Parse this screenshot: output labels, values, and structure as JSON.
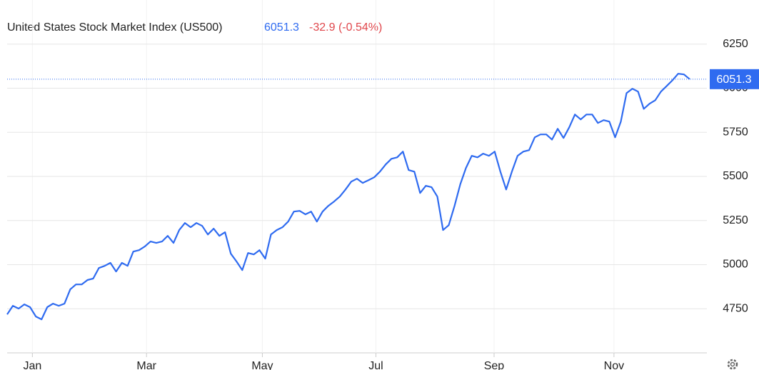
{
  "chart_data": {
    "type": "line",
    "title": "United States Stock Market Index (US500)",
    "last": 6051.3,
    "change": "-32.9 (-0.54%)",
    "color": "#2f6bf0",
    "values": [
      4718,
      4767,
      4751,
      4775,
      4759,
      4706,
      4690,
      4759,
      4779,
      4767,
      4779,
      4860,
      4888,
      4888,
      4913,
      4921,
      4981,
      4993,
      5010,
      4961,
      5010,
      4993,
      5074,
      5082,
      5103,
      5131,
      5123,
      5131,
      5163,
      5123,
      5196,
      5236,
      5212,
      5236,
      5220,
      5171,
      5204,
      5163,
      5184,
      5062,
      5018,
      4969,
      5066,
      5058,
      5082,
      5034,
      5171,
      5196,
      5212,
      5244,
      5301,
      5305,
      5285,
      5301,
      5244,
      5301,
      5333,
      5358,
      5386,
      5426,
      5471,
      5487,
      5463,
      5479,
      5495,
      5527,
      5568,
      5600,
      5608,
      5641,
      5536,
      5527,
      5406,
      5447,
      5439,
      5386,
      5196,
      5224,
      5333,
      5455,
      5548,
      5617,
      5608,
      5629,
      5617,
      5641,
      5527,
      5426,
      5527,
      5617,
      5641,
      5649,
      5722,
      5738,
      5738,
      5709,
      5770,
      5718,
      5778,
      5851,
      5823,
      5851,
      5851,
      5803,
      5819,
      5811,
      5722,
      5811,
      5972,
      5997,
      5981,
      5883,
      5912,
      5932,
      5981,
      6013,
      6045,
      6082,
      6078,
      6051.3
    ],
    "xlim": [
      0,
      122
    ],
    "xticks": [
      {
        "value": 4.4,
        "label": "Jan"
      },
      {
        "value": 24.3,
        "label": "Mar"
      },
      {
        "value": 44.5,
        "label": "May"
      },
      {
        "value": 64.3,
        "label": "Jul"
      },
      {
        "value": 84.9,
        "label": "Sep"
      },
      {
        "value": 105.8,
        "label": "Nov"
      }
    ],
    "ylim": [
      4500,
      6500
    ],
    "yticks": [
      4750,
      5000,
      5250,
      5500,
      5750,
      6000,
      6250
    ],
    "grid": true
  }
}
